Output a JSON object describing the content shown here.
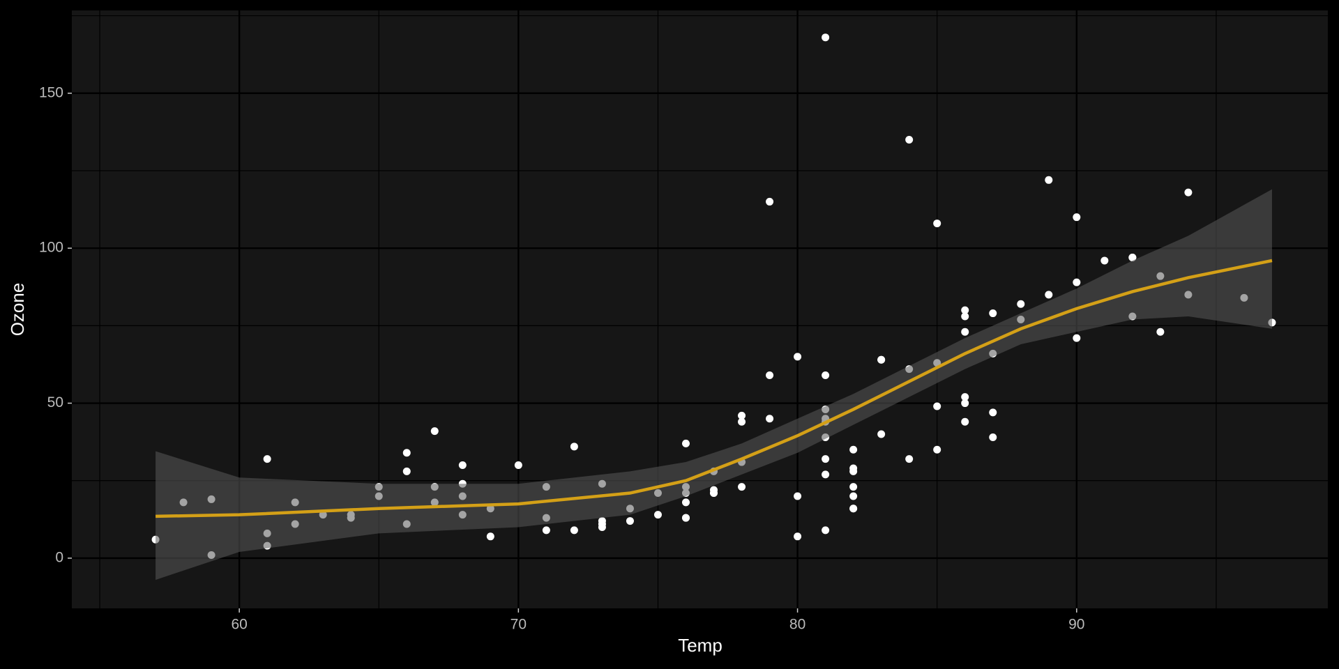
{
  "chart_data": {
    "type": "scatter",
    "x_label": "Temp",
    "y_label": "Ozone",
    "x": [
      67,
      72,
      74,
      62,
      66,
      65,
      59,
      61,
      69,
      66,
      68,
      58,
      64,
      66,
      57,
      68,
      62,
      59,
      73,
      61,
      61,
      67,
      81,
      79,
      76,
      82,
      90,
      87,
      82,
      77,
      65,
      73,
      76,
      84,
      85,
      81,
      83,
      83,
      88,
      92,
      92,
      89,
      73,
      81,
      80,
      81,
      82,
      84,
      87,
      85,
      74,
      86,
      85,
      82,
      86,
      88,
      86,
      83,
      81,
      81,
      81,
      82,
      86,
      85,
      87,
      89,
      90,
      90,
      86,
      82,
      80,
      77,
      79,
      76,
      78,
      78,
      77,
      72,
      79,
      81,
      86,
      97,
      94,
      96,
      94,
      91,
      92,
      93,
      93,
      87,
      84,
      80,
      78,
      75,
      73,
      81,
      76,
      77,
      71,
      71,
      78,
      67,
      76,
      68,
      82,
      64,
      71,
      69,
      63,
      70,
      75,
      76,
      68
    ],
    "values": [
      41,
      36,
      12,
      18,
      28,
      23,
      19,
      8,
      16,
      11,
      14,
      18,
      14,
      34,
      6,
      30,
      11,
      1,
      11,
      4,
      32,
      23,
      45,
      115,
      37,
      29,
      71,
      39,
      23,
      21,
      20,
      12,
      13,
      135,
      49,
      32,
      64,
      40,
      77,
      97,
      97,
      85,
      10,
      27,
      7,
      48,
      35,
      61,
      79,
      63,
      16,
      80,
      108,
      20,
      52,
      82,
      50,
      64,
      59,
      39,
      9,
      16,
      78,
      35,
      66,
      122,
      89,
      110,
      44,
      28,
      65,
      22,
      59,
      23,
      31,
      44,
      21,
      9,
      45,
      168,
      73,
      76,
      118,
      84,
      85,
      96,
      78,
      73,
      91,
      47,
      32,
      20,
      23,
      21,
      24,
      44,
      21,
      28,
      9,
      13,
      46,
      18,
      13,
      24,
      16,
      13,
      23,
      7,
      14,
      30,
      14,
      18,
      20
    ],
    "color": "#ffffff",
    "smooth": {
      "x": [
        57,
        60,
        65,
        70,
        74,
        76,
        78,
        80,
        82,
        84,
        86,
        88,
        90,
        92,
        94,
        97
      ],
      "values": [
        13.5,
        14,
        16,
        17.5,
        21,
        25,
        32,
        39.5,
        48,
        57,
        66,
        74,
        80.5,
        86,
        90.5,
        96
      ],
      "lower": [
        -7,
        2,
        8,
        10,
        14,
        20,
        27,
        34,
        43,
        52,
        61,
        69,
        73,
        77,
        78,
        74
      ],
      "upper": [
        34.5,
        26,
        24,
        24,
        28,
        31,
        37,
        45,
        53,
        62,
        71,
        79,
        87,
        96,
        104,
        119
      ],
      "color": "#d4a017",
      "ribbon_color": "#5a5a5a"
    },
    "xlim": [
      54,
      99
    ],
    "ylim": [
      -16.2,
      176.7
    ],
    "xticks": [
      60,
      70,
      80,
      90
    ],
    "yticks": [
      0,
      50,
      100,
      150
    ],
    "xminor": [
      55,
      65,
      75,
      85,
      95
    ],
    "yminor": [
      25,
      75,
      125,
      175
    ],
    "grid": true
  }
}
